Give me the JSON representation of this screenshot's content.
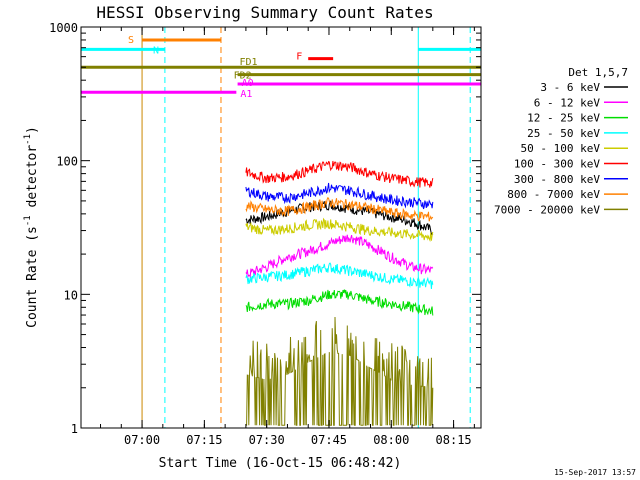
{
  "chart_data": {
    "type": "line",
    "title": "HESSI Observing Summary Count Rates",
    "xlabel": "Start Time (16-Oct-15 06:48:42)",
    "ylabel_main": "Count Rate (s",
    "ylabel_sup1": "-1",
    "ylabel_mid": " detector",
    "ylabel_sup2": "-1",
    "ylabel_end": ")",
    "y_scale": "log",
    "ylim": [
      1,
      1000
    ],
    "xlim_minutes": [
      -14.7,
      81.6
    ],
    "x_ticks": [
      {
        "minute": 0,
        "label": "07:00"
      },
      {
        "minute": 15,
        "label": "07:15"
      },
      {
        "minute": 30,
        "label": "07:30"
      },
      {
        "minute": 45,
        "label": "07:45"
      },
      {
        "minute": 60,
        "label": "08:00"
      },
      {
        "minute": 75,
        "label": "08:15"
      }
    ],
    "y_ticks": [
      {
        "value": 1,
        "label": "1"
      },
      {
        "value": 10,
        "label": "10"
      },
      {
        "value": 100,
        "label": "100"
      },
      {
        "value": 1000,
        "label": "1000"
      }
    ],
    "legend_title": "Det 1,5,7",
    "legend_position": "right",
    "footer_date": "15-Sep-2017 13:57",
    "series": [
      {
        "name": "3 - 6 keV",
        "color": "#000000",
        "x": [
          25,
          30,
          35,
          40,
          45,
          50,
          55,
          60,
          65,
          70
        ],
        "y": [
          36,
          38,
          42,
          45,
          47,
          44,
          41,
          38,
          35,
          30
        ]
      },
      {
        "name": "6 - 12 keV",
        "color": "#ff00ff",
        "x": [
          25,
          30,
          35,
          40,
          45,
          50,
          55,
          60,
          65,
          70
        ],
        "y": [
          14,
          16,
          19,
          21,
          24,
          27,
          23,
          19,
          16,
          15
        ]
      },
      {
        "name": "12 - 25 keV",
        "color": "#00dd00",
        "x": [
          25,
          30,
          35,
          40,
          45,
          50,
          55,
          60,
          65,
          70
        ],
        "y": [
          8,
          8.5,
          8.5,
          9,
          10,
          10,
          9,
          8.5,
          8,
          7.5
        ]
      },
      {
        "name": "25 - 50 keV",
        "color": "#00ffff",
        "x": [
          25,
          30,
          35,
          40,
          45,
          50,
          55,
          60,
          65,
          70
        ],
        "y": [
          13,
          13.5,
          14,
          15,
          16,
          15,
          14,
          13,
          12.5,
          12
        ]
      },
      {
        "name": "50 - 100 keV",
        "color": "#cccc00",
        "x": [
          25,
          30,
          35,
          40,
          45,
          50,
          55,
          60,
          65,
          70
        ],
        "y": [
          32,
          30,
          31,
          33,
          34,
          32,
          30,
          29,
          28,
          27
        ]
      },
      {
        "name": "100 - 300 keV",
        "color": "#ff0000",
        "x": [
          25,
          30,
          35,
          40,
          45,
          50,
          55,
          60,
          65,
          70
        ],
        "y": [
          82,
          74,
          76,
          84,
          94,
          90,
          80,
          74,
          70,
          68
        ]
      },
      {
        "name": "300 - 800 keV",
        "color": "#0000ff",
        "x": [
          25,
          30,
          35,
          40,
          45,
          50,
          55,
          60,
          65,
          70
        ],
        "y": [
          60,
          54,
          53,
          57,
          63,
          60,
          55,
          51,
          49,
          47
        ]
      },
      {
        "name": "800 - 7000 keV",
        "color": "#ff8000",
        "x": [
          25,
          30,
          35,
          40,
          45,
          50,
          55,
          60,
          65,
          70
        ],
        "y": [
          46,
          43,
          42,
          45,
          49,
          47,
          44,
          41,
          39,
          38
        ]
      },
      {
        "name": "7000 - 20000 keV",
        "color": "#808000",
        "x": [
          25,
          30,
          35,
          40,
          45,
          50,
          55,
          60,
          65,
          70
        ],
        "y": [
          2.5,
          2.3,
          2.5,
          3.1,
          3.7,
          3.5,
          2.8,
          2.3,
          2.1,
          2.0
        ]
      }
    ],
    "flag_bars": [
      {
        "label": "S",
        "color": "#ff8000",
        "y": 800,
        "x0": 0,
        "x1": 19
      },
      {
        "label": "N",
        "color": "#00ffff",
        "y": 680,
        "x0": -14.7,
        "x1": 5.5
      },
      {
        "label": "N",
        "color": "#00ffff",
        "y": 680,
        "x0": 66.5,
        "x1": 81.6
      },
      {
        "label": "F",
        "color": "#ff0000",
        "y": 580,
        "x0": 40,
        "x1": 46
      },
      {
        "label": "FD1",
        "color": "#808000",
        "y": 500,
        "x0": -14.7,
        "x1": 81.6
      },
      {
        "label": "FD2",
        "color": "#808000",
        "y": 440,
        "x0": 23,
        "x1": 81.6
      },
      {
        "label": "A0",
        "color": "#ff00ff",
        "y": 375,
        "x0": 23,
        "x1": 81.6
      },
      {
        "label": "A1",
        "color": "#ff00ff",
        "y": 325,
        "x0": -14.7,
        "x1": 22.7
      }
    ],
    "vertical_markers": [
      {
        "minute": -14.7,
        "color": "#00ffff",
        "style": "solid"
      },
      {
        "minute": 0,
        "color": "#cc8800",
        "style": "solid"
      },
      {
        "minute": 5.5,
        "color": "#00ffff",
        "style": "dashed"
      },
      {
        "minute": 19,
        "color": "#ff8000",
        "style": "dashed"
      },
      {
        "minute": 66.5,
        "color": "#00ffff",
        "style": "solid"
      },
      {
        "minute": 79,
        "color": "#00ffff",
        "style": "dashed"
      }
    ]
  }
}
